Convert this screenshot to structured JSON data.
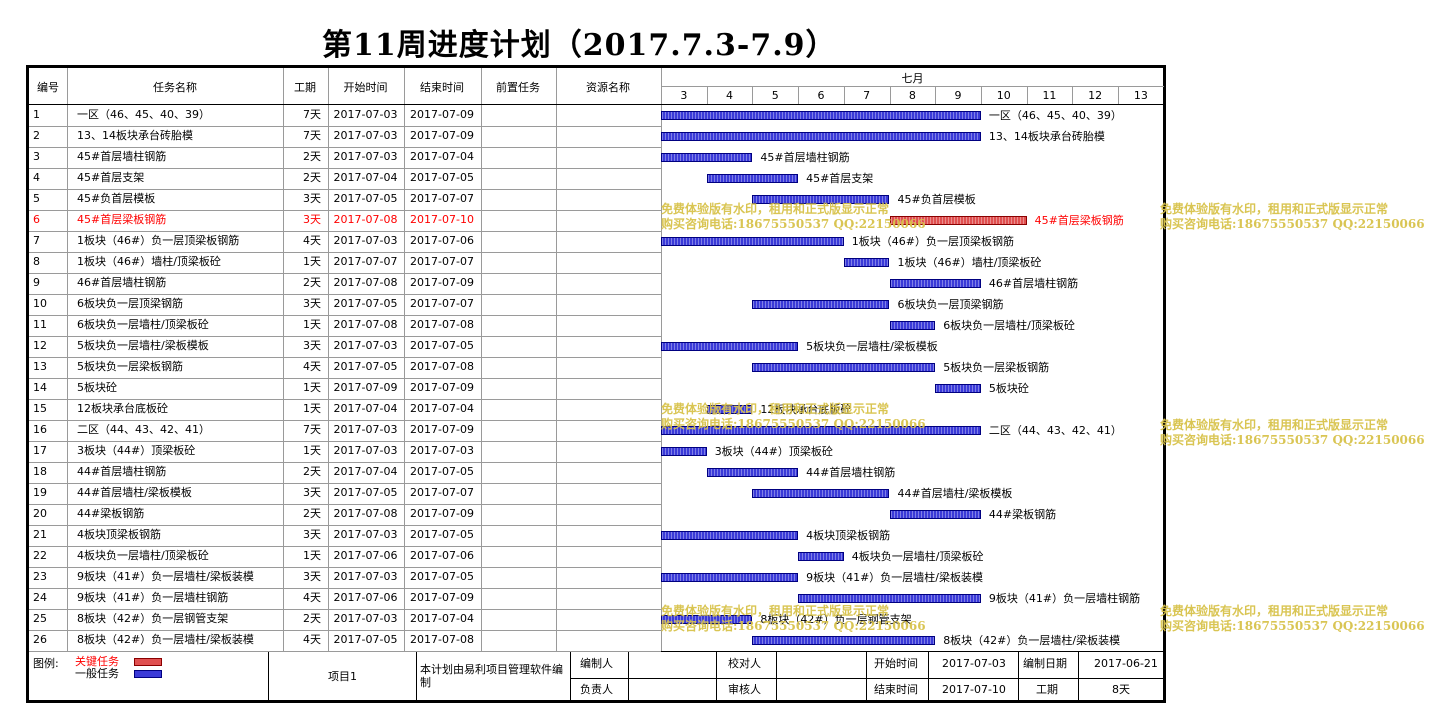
{
  "title": "第11周进度计划（2017.7.3-7.9）",
  "columns": {
    "no": "编号",
    "name": "任务名称",
    "duration": "工期",
    "start": "开始时间",
    "end": "结束时间",
    "predecessor": "前置任务",
    "resource": "资源名称"
  },
  "timeline": {
    "month": "七月",
    "days": [
      "3",
      "4",
      "5",
      "6",
      "7",
      "8",
      "9",
      "10",
      "11",
      "12",
      "13"
    ]
  },
  "colors": {
    "normal_bar": "#3a3ad8",
    "critical_bar": "#e05050",
    "critical_text": "#ff0000",
    "watermark": "#d8c24a"
  },
  "tasks": [
    {
      "no": "1",
      "name": "一区（46、45、40、39）",
      "duration": "7天",
      "start": "2017-07-03",
      "end": "2017-07-09",
      "critical": false,
      "s": 3,
      "e": 9,
      "label": "一区（46、45、40、39）"
    },
    {
      "no": "2",
      "name": "13、14板块承台砖胎模",
      "duration": "7天",
      "start": "2017-07-03",
      "end": "2017-07-09",
      "critical": false,
      "s": 3,
      "e": 9,
      "label": "13、14板块承台砖胎模"
    },
    {
      "no": "3",
      "name": "45#首层墙柱钢筋",
      "duration": "2天",
      "start": "2017-07-03",
      "end": "2017-07-04",
      "critical": false,
      "s": 3,
      "e": 4,
      "label": "45#首层墙柱钢筋"
    },
    {
      "no": "4",
      "name": "45#首层支架",
      "duration": "2天",
      "start": "2017-07-04",
      "end": "2017-07-05",
      "critical": false,
      "s": 4,
      "e": 5,
      "label": "45#首层支架"
    },
    {
      "no": "5",
      "name": "45#负首层模板",
      "duration": "3天",
      "start": "2017-07-05",
      "end": "2017-07-07",
      "critical": false,
      "s": 5,
      "e": 7,
      "label": "45#负首层模板"
    },
    {
      "no": "6",
      "name": "45#首层梁板钢筋",
      "duration": "3天",
      "start": "2017-07-08",
      "end": "2017-07-10",
      "critical": true,
      "s": 8,
      "e": 10,
      "label": "45#首层梁板钢筋"
    },
    {
      "no": "7",
      "name": "1板块（46#）负一层顶梁板钢筋",
      "duration": "4天",
      "start": "2017-07-03",
      "end": "2017-07-06",
      "critical": false,
      "s": 3,
      "e": 6,
      "label": "1板块（46#）负一层顶梁板钢筋"
    },
    {
      "no": "8",
      "name": "1板块（46#）墙柱/顶梁板砼",
      "duration": "1天",
      "start": "2017-07-07",
      "end": "2017-07-07",
      "critical": false,
      "s": 7,
      "e": 7,
      "label": "1板块（46#）墙柱/顶梁板砼"
    },
    {
      "no": "9",
      "name": "46#首层墙柱钢筋",
      "duration": "2天",
      "start": "2017-07-08",
      "end": "2017-07-09",
      "critical": false,
      "s": 8,
      "e": 9,
      "label": "46#首层墙柱钢筋"
    },
    {
      "no": "10",
      "name": "6板块负一层顶梁钢筋",
      "duration": "3天",
      "start": "2017-07-05",
      "end": "2017-07-07",
      "critical": false,
      "s": 5,
      "e": 7,
      "label": "6板块负一层顶梁钢筋"
    },
    {
      "no": "11",
      "name": "6板块负一层墙柱/顶梁板砼",
      "duration": "1天",
      "start": "2017-07-08",
      "end": "2017-07-08",
      "critical": false,
      "s": 8,
      "e": 8,
      "label": "6板块负一层墙柱/顶梁板砼"
    },
    {
      "no": "12",
      "name": "5板块负一层墙柱/梁板模板",
      "duration": "3天",
      "start": "2017-07-03",
      "end": "2017-07-05",
      "critical": false,
      "s": 3,
      "e": 5,
      "label": "5板块负一层墙柱/梁板模板"
    },
    {
      "no": "13",
      "name": "5板块负一层梁板钢筋",
      "duration": "4天",
      "start": "2017-07-05",
      "end": "2017-07-08",
      "critical": false,
      "s": 5,
      "e": 8,
      "label": "5板块负一层梁板钢筋"
    },
    {
      "no": "14",
      "name": "5板块砼",
      "duration": "1天",
      "start": "2017-07-09",
      "end": "2017-07-09",
      "critical": false,
      "s": 9,
      "e": 9,
      "label": "5板块砼"
    },
    {
      "no": "15",
      "name": "12板块承台底板砼",
      "duration": "1天",
      "start": "2017-07-04",
      "end": "2017-07-04",
      "critical": false,
      "s": 4,
      "e": 4,
      "label": "12板块承台底板砼"
    },
    {
      "no": "16",
      "name": "二区（44、43、42、41）",
      "duration": "7天",
      "start": "2017-07-03",
      "end": "2017-07-09",
      "critical": false,
      "s": 3,
      "e": 9,
      "label": "二区（44、43、42、41）"
    },
    {
      "no": "17",
      "name": "3板块（44#）顶梁板砼",
      "duration": "1天",
      "start": "2017-07-03",
      "end": "2017-07-03",
      "critical": false,
      "s": 3,
      "e": 3,
      "label": "3板块（44#）顶梁板砼"
    },
    {
      "no": "18",
      "name": "44#首层墙柱钢筋",
      "duration": "2天",
      "start": "2017-07-04",
      "end": "2017-07-05",
      "critical": false,
      "s": 4,
      "e": 5,
      "label": "44#首层墙柱钢筋"
    },
    {
      "no": "19",
      "name": "44#首层墙柱/梁板模板",
      "duration": "3天",
      "start": "2017-07-05",
      "end": "2017-07-07",
      "critical": false,
      "s": 5,
      "e": 7,
      "label": "44#首层墙柱/梁板模板"
    },
    {
      "no": "20",
      "name": "44#梁板钢筋",
      "duration": "2天",
      "start": "2017-07-08",
      "end": "2017-07-09",
      "critical": false,
      "s": 8,
      "e": 9,
      "label": "44#梁板钢筋"
    },
    {
      "no": "21",
      "name": "4板块顶梁板钢筋",
      "duration": "3天",
      "start": "2017-07-03",
      "end": "2017-07-05",
      "critical": false,
      "s": 3,
      "e": 5,
      "label": "4板块顶梁板钢筋"
    },
    {
      "no": "22",
      "name": "4板块负一层墙柱/顶梁板砼",
      "duration": "1天",
      "start": "2017-07-06",
      "end": "2017-07-06",
      "critical": false,
      "s": 6,
      "e": 6,
      "label": "4板块负一层墙柱/顶梁板砼"
    },
    {
      "no": "23",
      "name": "9板块（41#）负一层墙柱/梁板装模",
      "duration": "3天",
      "start": "2017-07-03",
      "end": "2017-07-05",
      "critical": false,
      "s": 3,
      "e": 5,
      "label": "9板块（41#）负一层墙柱/梁板装模"
    },
    {
      "no": "24",
      "name": "9板块（41#）负一层墙柱钢筋",
      "duration": "4天",
      "start": "2017-07-06",
      "end": "2017-07-09",
      "critical": false,
      "s": 6,
      "e": 9,
      "label": "9板块（41#）负一层墙柱钢筋"
    },
    {
      "no": "25",
      "name": "8板块（42#）负一层钢管支架",
      "duration": "2天",
      "start": "2017-07-03",
      "end": "2017-07-04",
      "critical": false,
      "s": 3,
      "e": 4,
      "label": "8板块（42#）负一层钢管支架"
    },
    {
      "no": "26",
      "name": "8板块（42#）负一层墙柱/梁板装模",
      "duration": "4天",
      "start": "2017-07-05",
      "end": "2017-07-08",
      "critical": false,
      "s": 5,
      "e": 8,
      "label": "8板块（42#）负一层墙柱/梁板装模"
    }
  ],
  "footer": {
    "legend_label": "图例:",
    "legend_critical": "关键任务",
    "legend_normal": "一般任务",
    "project": "项目1",
    "software_note": "本计划由易利项目管理软件编制",
    "compiler_label": "编制人",
    "checker_label": "校对人",
    "responsible_label": "负责人",
    "reviewer_label": "审核人",
    "start_label": "开始时间",
    "start_value": "2017-07-03",
    "made_label": "编制日期",
    "made_value": "2017-06-21",
    "end_label": "结束时间",
    "end_value": "2017-07-10",
    "duration_label": "工期",
    "duration_value": "8天"
  },
  "watermark": {
    "line1": "免费体验版有水印，租用和正式版显示正常",
    "line2": "购买咨询电话:18675550537 QQ:22150066"
  }
}
